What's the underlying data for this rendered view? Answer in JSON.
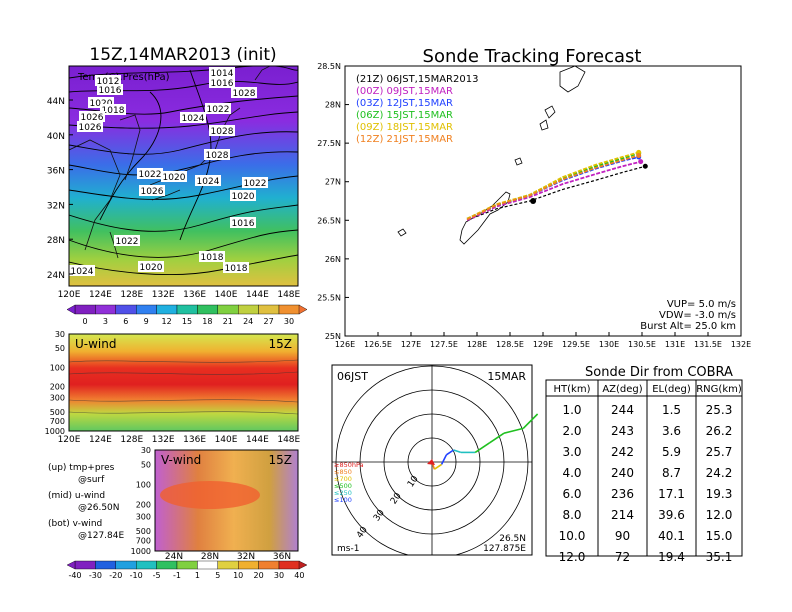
{
  "left": {
    "map_title": "15Z,14MAR2013 (init)",
    "map_inner_label": "Temp(C),Pres(hPa)",
    "map_lat_labels": [
      "44N",
      "40N",
      "36N",
      "32N",
      "28N",
      "24N"
    ],
    "map_lon_labels": [
      "120E",
      "124E",
      "128E",
      "132E",
      "136E",
      "140E",
      "144E",
      "148E"
    ],
    "pressure_labels": [
      "1014",
      "1016",
      "1012",
      "1016",
      "1020",
      "1018",
      "1022",
      "1024",
      "1026",
      "1028",
      "1026",
      "1028",
      "1022",
      "1020",
      "1028",
      "1026",
      "1024",
      "1022",
      "1020",
      "1016",
      "1022",
      "1020",
      "1018",
      "1024",
      "1018"
    ],
    "temp_colorbar_ticks": [
      "0",
      "3",
      "6",
      "9",
      "12",
      "15",
      "18",
      "21",
      "24",
      "27",
      "30"
    ],
    "uwind_title": "U-wind",
    "uwind_time": "15Z",
    "uwind_p_labels": [
      "30",
      "50",
      "100",
      "200",
      "300",
      "500",
      "700",
      "1000"
    ],
    "uwind_lon_labels": [
      "120E",
      "124E",
      "128E",
      "132E",
      "136E",
      "140E",
      "144E",
      "148E"
    ],
    "vwind_title": "V-wind",
    "vwind_time": "15Z",
    "vwind_p_labels": [
      "30",
      "50",
      "100",
      "200",
      "300",
      "500",
      "700",
      "1000"
    ],
    "vwind_lat_labels": [
      "24N",
      "28N",
      "32N",
      "36N"
    ],
    "legend_lines": [
      "(up) tmp+pres",
      "@surf",
      "(mid) u-wind",
      "@26.50N",
      "(bot) v-wind",
      "@127.84E"
    ],
    "wind_colorbar_ticks": [
      "-40",
      "-30",
      "-20",
      "-10",
      "-5",
      "-1",
      "1",
      "5",
      "10",
      "20",
      "30",
      "40"
    ]
  },
  "tracking": {
    "title": "Sonde Tracking Forecast",
    "legend": [
      {
        "label": "(21Z)  06JST,15MAR2013",
        "color": "#000000"
      },
      {
        "label": "(00Z)  09JST,15MAR",
        "color": "#c020c0"
      },
      {
        "label": "(03Z)  12JST,15MAR",
        "color": "#2040ff"
      },
      {
        "label": "(06Z)  15JST,15MAR",
        "color": "#20c020"
      },
      {
        "label": "(09Z)  18JST,15MAR",
        "color": "#e0c000"
      },
      {
        "label": "(12Z)  21JST,15MAR",
        "color": "#f08020"
      }
    ],
    "lat_labels": [
      "28.5N",
      "28N",
      "27.5N",
      "27N",
      "26.5N",
      "26N",
      "25.5N",
      "25N"
    ],
    "lon_labels": [
      "126E",
      "126.5E",
      "127E",
      "127.5E",
      "128E",
      "128.5E",
      "129E",
      "129.5E",
      "130E",
      "130.5E",
      "131E",
      "131.5E",
      "132E"
    ],
    "info": [
      "VUP=  5.0  m/s",
      "VDW=  -3.0  m/s",
      "Burst Alt=  25.0  km"
    ]
  },
  "polar": {
    "time_label": "06JST",
    "date_label": "15MAR",
    "ring_labels": [
      "10",
      "20",
      "30",
      "40"
    ],
    "level_legend": [
      {
        "label": "≥850hPa",
        "color": "#e02020"
      },
      {
        "label": "≤850",
        "color": "#f08020"
      },
      {
        "label": "≤700",
        "color": "#e0c000"
      },
      {
        "label": "≤500",
        "color": "#20c020"
      },
      {
        "label": "≤250",
        "color": "#20c0c0"
      },
      {
        "label": "≤100",
        "color": "#2040ff"
      }
    ],
    "unit": "ms-1",
    "loc_lat": "26.5N",
    "loc_lon": "127.875E"
  },
  "sonde_table": {
    "title": "Sonde Dir from COBRA",
    "headers": [
      "HT(km)",
      "AZ(deg)",
      "EL(deg)",
      "RNG(km)"
    ],
    "rows": [
      [
        "1.0",
        "244",
        "1.5",
        "25.3"
      ],
      [
        "2.0",
        "243",
        "3.6",
        "26.2"
      ],
      [
        "3.0",
        "242",
        "5.9",
        "25.7"
      ],
      [
        "4.0",
        "240",
        "8.7",
        "24.2"
      ],
      [
        "6.0",
        "236",
        "17.1",
        "19.3"
      ],
      [
        "8.0",
        "214",
        "39.6",
        "12.0"
      ],
      [
        "10.0",
        "90",
        "40.1",
        "15.0"
      ],
      [
        "12.0",
        "72",
        "19.4",
        "35.1"
      ]
    ]
  },
  "chart_data": [
    {
      "type": "heatmap",
      "title": "15Z,14MAR2013 (init)",
      "subtitle": "Temp(C),Pres(hPa)",
      "x_range": [
        "120E",
        "148E"
      ],
      "y_range": [
        "22N",
        "47N"
      ],
      "colorbar": [
        0,
        3,
        6,
        9,
        12,
        15,
        18,
        21,
        24,
        27,
        30
      ],
      "contour_labels": [
        1012,
        1014,
        1016,
        1018,
        1020,
        1022,
        1024,
        1026,
        1028
      ]
    },
    {
      "type": "heatmap",
      "title": "U-wind",
      "x_range": [
        "120E",
        "148E"
      ],
      "y_levels_hPa": [
        30,
        50,
        100,
        200,
        300,
        500,
        700,
        1000
      ]
    },
    {
      "type": "heatmap",
      "title": "V-wind",
      "x_range": [
        "22N",
        "38N"
      ],
      "y_levels_hPa": [
        30,
        50,
        100,
        200,
        300,
        500,
        700,
        1000
      ],
      "colorbar": [
        -40,
        -30,
        -20,
        -10,
        -5,
        -1,
        1,
        5,
        10,
        20,
        30,
        40
      ]
    },
    {
      "type": "line",
      "title": "Sonde Tracking Forecast",
      "xlim": [
        126,
        132
      ],
      "ylim": [
        25,
        28.5
      ],
      "series": [
        {
          "name": "(21Z) 06JST,15MAR2013",
          "color": "#000000",
          "x": [
            127.85,
            128.3,
            128.8,
            129.3,
            129.8,
            130.2,
            130.55
          ],
          "y": [
            26.5,
            26.65,
            26.75,
            26.9,
            27.02,
            27.12,
            27.2
          ]
        },
        {
          "name": "(00Z) 09JST,15MAR",
          "color": "#c020c0",
          "x": [
            127.85,
            128.3,
            128.8,
            129.3,
            129.8,
            130.2,
            130.48
          ],
          "y": [
            26.5,
            26.68,
            26.8,
            26.97,
            27.1,
            27.2,
            27.26
          ]
        },
        {
          "name": "(03Z) 12JST,15MAR",
          "color": "#2040ff",
          "x": [
            127.85,
            128.3,
            128.8,
            129.3,
            129.8,
            130.2,
            130.45
          ],
          "y": [
            26.52,
            26.7,
            26.82,
            27.02,
            27.17,
            27.27,
            27.32
          ]
        },
        {
          "name": "(06Z) 15JST,15MAR",
          "color": "#20c020",
          "x": [
            127.85,
            128.3,
            128.8,
            129.3,
            129.8,
            130.2,
            130.45
          ],
          "y": [
            26.52,
            26.7,
            26.83,
            27.05,
            27.2,
            27.3,
            27.37
          ]
        },
        {
          "name": "(09Z) 18JST,15MAR",
          "color": "#e0c000",
          "x": [
            127.85,
            128.3,
            128.8,
            129.3,
            129.8,
            130.2,
            130.45
          ],
          "y": [
            26.52,
            26.71,
            26.83,
            27.06,
            27.22,
            27.32,
            27.38
          ]
        },
        {
          "name": "(12Z) 21JST,15MAR",
          "color": "#f08020",
          "x": [
            127.85,
            128.3,
            128.8,
            129.3,
            129.8,
            130.2,
            130.45
          ],
          "y": [
            26.51,
            26.7,
            26.82,
            27.03,
            27.18,
            27.28,
            27.34
          ]
        }
      ]
    },
    {
      "type": "line",
      "title": "06JST 15MAR hodograph",
      "rings_ms": [
        10,
        20,
        30,
        40
      ],
      "unit": "ms-1",
      "hodograph_uv": [
        [
          0,
          0
        ],
        [
          1,
          -3
        ],
        [
          4,
          -1
        ],
        [
          6,
          3
        ],
        [
          9,
          5
        ],
        [
          12,
          4
        ],
        [
          18,
          4
        ],
        [
          24,
          8
        ],
        [
          30,
          12
        ],
        [
          38,
          14
        ],
        [
          44,
          20
        ]
      ]
    }
  ]
}
